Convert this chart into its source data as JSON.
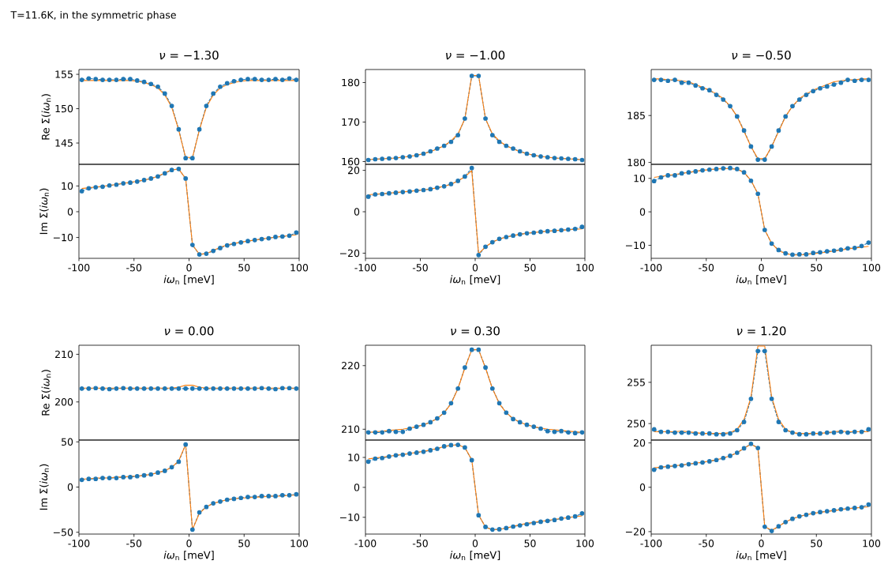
{
  "chart_data": [
    {
      "type": "line",
      "title": "*ν* = −1.30",
      "ylabel": "Re Σ(*iω*$_{n}$)",
      "annotations": [
        "T=11.6K, in the symmetric phase"
      ],
      "tick_labels": "y",
      "xlim": [
        -100,
        100
      ],
      "ylim": [
        141.9,
        155.7
      ],
      "yticks": [
        145,
        150,
        155
      ],
      "x": [
        -97.4,
        -91.1,
        -84.8,
        -78.5,
        -72.3,
        -66.0,
        -59.7,
        -53.4,
        -47.1,
        -40.8,
        -34.6,
        -28.3,
        -22.0,
        -15.7,
        -9.4,
        -3.1,
        3.1,
        9.4,
        15.7,
        22.0,
        28.3,
        34.6,
        40.8,
        47.1,
        53.4,
        59.7,
        66.0,
        72.3,
        78.5,
        84.8,
        91.1,
        97.4
      ],
      "series": [
        {
          "color": "#1f77b4",
          "marker": "circle",
          "line_style": "dashed",
          "values": [
            154.2,
            154.4,
            154.3,
            154.2,
            154.2,
            154.2,
            154.3,
            154.3,
            154.1,
            153.9,
            153.6,
            153.2,
            152.2,
            150.4,
            147.0,
            142.8,
            142.8,
            147.0,
            150.4,
            152.2,
            153.2,
            153.7,
            154.0,
            154.2,
            154.3,
            154.3,
            154.2,
            154.2,
            154.3,
            154.2,
            154.4,
            154.2
          ]
        },
        {
          "color": "#ff7f0e",
          "marker": "none",
          "line_style": "solid",
          "values": [
            154.1,
            154.1,
            154.1,
            154.1,
            154.1,
            154.1,
            154.1,
            154.1,
            154.0,
            153.8,
            153.5,
            153.0,
            152.0,
            150.2,
            146.9,
            142.9,
            142.9,
            146.9,
            150.2,
            152.0,
            153.0,
            153.5,
            153.8,
            154.0,
            154.1,
            154.1,
            154.1,
            154.1,
            154.1,
            154.1,
            154.1,
            154.1
          ]
        }
      ]
    },
    {
      "type": "line",
      "title": "*ν* = −1.00",
      "tick_labels": "y",
      "xlim": [
        -100,
        100
      ],
      "ylim": [
        159.3,
        183.3
      ],
      "yticks": [
        160,
        170,
        180
      ],
      "x": [
        -97.4,
        -91.1,
        -84.8,
        -78.5,
        -72.3,
        -66.0,
        -59.7,
        -53.4,
        -47.1,
        -40.8,
        -34.6,
        -28.3,
        -22.0,
        -15.7,
        -9.4,
        -3.1,
        3.1,
        9.4,
        15.7,
        22.0,
        28.3,
        34.6,
        40.8,
        47.1,
        53.4,
        59.7,
        66.0,
        72.3,
        78.5,
        84.8,
        91.1,
        97.4
      ],
      "series": [
        {
          "color": "#1f77b4",
          "marker": "circle",
          "line_style": "dashed",
          "values": [
            160.4,
            160.6,
            160.7,
            160.8,
            160.9,
            161.1,
            161.3,
            161.6,
            162.0,
            162.6,
            163.3,
            164.0,
            165.0,
            166.7,
            170.9,
            181.7,
            181.7,
            170.9,
            166.7,
            165.0,
            164.0,
            163.3,
            162.6,
            162.0,
            161.6,
            161.3,
            161.1,
            160.9,
            160.8,
            160.7,
            160.6,
            160.4
          ]
        },
        {
          "color": "#ff7f0e",
          "marker": "none",
          "line_style": "solid",
          "values": [
            160.5,
            160.6,
            160.7,
            160.8,
            160.9,
            161.1,
            161.3,
            161.6,
            162.0,
            162.5,
            163.2,
            164.0,
            165.2,
            167.0,
            170.8,
            181.8,
            181.8,
            170.8,
            167.0,
            165.2,
            164.0,
            163.2,
            162.5,
            162.0,
            161.6,
            161.3,
            161.1,
            160.9,
            160.8,
            160.7,
            160.6,
            160.5
          ]
        }
      ]
    },
    {
      "type": "line",
      "title": "*ν* = −0.50",
      "tick_labels": "y",
      "xlim": [
        -100,
        100
      ],
      "ylim": [
        179.8,
        189.9
      ],
      "yticks": [
        180,
        185
      ],
      "x": [
        -97.4,
        -91.1,
        -84.8,
        -78.5,
        -72.3,
        -66.0,
        -59.7,
        -53.4,
        -47.1,
        -40.8,
        -34.6,
        -28.3,
        -22.0,
        -15.7,
        -9.4,
        -3.1,
        3.1,
        9.4,
        15.7,
        22.0,
        28.3,
        34.6,
        40.8,
        47.1,
        53.4,
        59.7,
        66.0,
        72.3,
        78.5,
        84.8,
        91.1,
        97.4
      ],
      "series": [
        {
          "color": "#1f77b4",
          "marker": "circle",
          "line_style": "dashed",
          "values": [
            188.8,
            188.8,
            188.7,
            188.8,
            188.5,
            188.5,
            188.2,
            187.9,
            187.7,
            187.2,
            186.7,
            186.0,
            184.9,
            183.4,
            181.7,
            180.3,
            180.3,
            181.7,
            183.4,
            184.9,
            186.0,
            186.7,
            187.2,
            187.6,
            187.9,
            188.1,
            188.3,
            188.5,
            188.8,
            188.7,
            188.8,
            188.8
          ]
        },
        {
          "color": "#ff7f0e",
          "marker": "none",
          "line_style": "solid",
          "values": [
            188.9,
            188.9,
            188.8,
            188.8,
            188.7,
            188.6,
            188.3,
            188.0,
            187.7,
            187.3,
            186.8,
            186.0,
            184.9,
            183.3,
            181.7,
            180.4,
            180.4,
            181.7,
            183.3,
            184.9,
            186.0,
            186.8,
            187.3,
            187.7,
            188.0,
            188.3,
            188.6,
            188.7,
            188.8,
            188.8,
            188.9,
            188.9
          ]
        }
      ]
    },
    {
      "type": "line",
      "ylabel": "Im Σ(*iω*$_{n}$)",
      "xlabel": "*iω*$_{n}$ [meV]",
      "xlim": [
        -100,
        100
      ],
      "ylim": [
        -18.1,
        18.4
      ],
      "xticks": [
        -100,
        -50,
        0,
        50,
        100
      ],
      "yticks": [
        {
          "value": -10,
          "label": "−10"
        },
        0,
        10
      ],
      "x": [
        -97.4,
        -91.1,
        -84.8,
        -78.5,
        -72.3,
        -66.0,
        -59.7,
        -53.4,
        -47.1,
        -40.8,
        -34.6,
        -28.3,
        -22.0,
        -15.7,
        -9.4,
        -3.1,
        3.1,
        9.4,
        15.7,
        22.0,
        28.3,
        34.6,
        40.8,
        47.1,
        53.4,
        59.7,
        66.0,
        72.3,
        78.5,
        84.8,
        91.1,
        97.4
      ],
      "series": [
        {
          "color": "#1f77b4",
          "marker": "circle",
          "line_style": "dashed",
          "values": [
            8.0,
            9.1,
            9.5,
            9.7,
            10.2,
            10.5,
            11.0,
            11.3,
            11.7,
            12.3,
            12.9,
            13.7,
            14.9,
            16.2,
            16.6,
            12.9,
            -12.9,
            -16.6,
            -16.3,
            -15.2,
            -14.1,
            -13.1,
            -12.5,
            -11.9,
            -11.4,
            -11.0,
            -10.6,
            -10.3,
            -9.8,
            -9.6,
            -9.3,
            -8.1
          ]
        },
        {
          "color": "#ff7f0e",
          "marker": "none",
          "line_style": "solid",
          "values": [
            9.0,
            9.3,
            9.6,
            9.9,
            10.2,
            10.6,
            11.0,
            11.4,
            11.8,
            12.3,
            12.9,
            13.8,
            15.0,
            16.3,
            16.5,
            12.9,
            -12.9,
            -16.5,
            -16.3,
            -15.0,
            -13.8,
            -12.9,
            -12.3,
            -11.8,
            -11.4,
            -11.0,
            -10.6,
            -10.2,
            -9.9,
            -9.6,
            -9.3,
            -9.0
          ]
        }
      ]
    },
    {
      "type": "line",
      "xlabel": "*iω*$_{n}$ [meV]",
      "xlim": [
        -100,
        100
      ],
      "ylim": [
        -22.5,
        22.9
      ],
      "xticks": [
        -100,
        -50,
        0,
        50,
        100
      ],
      "yticks": [
        {
          "value": -20,
          "label": "−20"
        },
        0,
        20
      ],
      "x": [
        -97.4,
        -91.1,
        -84.8,
        -78.5,
        -72.3,
        -66.0,
        -59.7,
        -53.4,
        -47.1,
        -40.8,
        -34.6,
        -28.3,
        -22.0,
        -15.7,
        -9.4,
        -3.1,
        3.1,
        9.4,
        15.7,
        22.0,
        28.3,
        34.6,
        40.8,
        47.1,
        53.4,
        59.7,
        66.0,
        72.3,
        78.5,
        84.8,
        91.1,
        97.4
      ],
      "series": [
        {
          "color": "#1f77b4",
          "marker": "circle",
          "line_style": "dashed",
          "values": [
            7.3,
            8.4,
            8.6,
            8.9,
            9.2,
            9.5,
            9.8,
            10.2,
            10.5,
            10.9,
            11.6,
            12.3,
            13.4,
            14.9,
            17.0,
            21.1,
            -20.9,
            -16.9,
            -14.7,
            -13.1,
            -12.2,
            -11.5,
            -10.9,
            -10.4,
            -10.1,
            -9.7,
            -9.4,
            -9.2,
            -8.9,
            -8.6,
            -8.3,
            -7.3
          ]
        },
        {
          "color": "#ff7f0e",
          "marker": "none",
          "line_style": "solid",
          "values": [
            8.2,
            8.5,
            8.7,
            9.0,
            9.3,
            9.6,
            9.9,
            10.2,
            10.6,
            11.0,
            11.6,
            12.3,
            13.3,
            14.9,
            16.9,
            19.9,
            -20.3,
            -16.9,
            -14.7,
            -13.2,
            -12.2,
            -11.5,
            -10.9,
            -10.4,
            -10.0,
            -9.7,
            -9.4,
            -9.1,
            -8.9,
            -8.7,
            -8.5,
            -8.3
          ]
        }
      ]
    },
    {
      "type": "line",
      "xlabel": "*iω*$_{n}$ [meV]",
      "xlim": [
        -100,
        100
      ],
      "ylim": [
        -13.9,
        14.2
      ],
      "xticks": [
        -100,
        -50,
        0,
        50,
        100
      ],
      "yticks": [
        {
          "value": -10,
          "label": "−10"
        },
        0,
        10
      ],
      "x": [
        -97.4,
        -91.1,
        -84.8,
        -78.5,
        -72.3,
        -66.0,
        -59.7,
        -53.4,
        -47.1,
        -40.8,
        -34.6,
        -28.3,
        -22.0,
        -15.7,
        -9.4,
        -3.1,
        3.1,
        9.4,
        15.7,
        22.0,
        28.3,
        34.6,
        40.8,
        47.1,
        53.4,
        59.7,
        66.0,
        72.3,
        78.5,
        84.8,
        91.1,
        97.4
      ],
      "series": [
        {
          "color": "#1f77b4",
          "marker": "circle",
          "line_style": "dashed",
          "values": [
            9.2,
            10.3,
            10.9,
            10.9,
            11.5,
            11.8,
            12.1,
            12.4,
            12.6,
            12.8,
            13.0,
            13.1,
            12.8,
            11.8,
            9.3,
            5.4,
            -5.4,
            -9.5,
            -11.4,
            -12.4,
            -12.8,
            -12.7,
            -12.7,
            -12.3,
            -12.1,
            -11.8,
            -11.6,
            -11.3,
            -10.9,
            -10.8,
            -10.2,
            -9.2
          ]
        },
        {
          "color": "#ff7f0e",
          "marker": "none",
          "line_style": "solid",
          "values": [
            10.3,
            10.6,
            10.9,
            11.2,
            11.5,
            11.8,
            12.1,
            12.4,
            12.6,
            12.8,
            12.9,
            12.9,
            12.7,
            11.8,
            9.4,
            5.4,
            -5.4,
            -9.4,
            -11.6,
            -12.5,
            -12.9,
            -12.9,
            -12.7,
            -12.5,
            -12.3,
            -12.0,
            -11.7,
            -11.4,
            -11.1,
            -10.8,
            -10.6,
            -10.3
          ]
        }
      ]
    },
    {
      "type": "line",
      "title": "*ν* = 0.00",
      "ylabel": "Re Σ(*iω*$_{n}$)",
      "tick_labels": "y",
      "xlim": [
        -100,
        100
      ],
      "ylim": [
        192.0,
        211.9
      ],
      "yticks": [
        200,
        210
      ],
      "x": [
        -97.4,
        -91.1,
        -84.8,
        -78.5,
        -72.3,
        -66.0,
        -59.7,
        -53.4,
        -47.1,
        -40.8,
        -34.6,
        -28.3,
        -22.0,
        -15.7,
        -9.4,
        -3.1,
        3.1,
        9.4,
        15.7,
        22.0,
        28.3,
        34.6,
        40.8,
        47.1,
        53.4,
        59.7,
        66.0,
        72.3,
        78.5,
        84.8,
        91.1,
        97.4
      ],
      "series": [
        {
          "color": "#1f77b4",
          "marker": "circle",
          "line_style": "dashed",
          "values": [
            202.8,
            202.8,
            202.9,
            202.8,
            202.7,
            202.8,
            202.9,
            202.8,
            202.8,
            202.8,
            202.8,
            202.8,
            202.8,
            202.8,
            202.8,
            202.8,
            202.8,
            202.8,
            202.8,
            202.8,
            202.8,
            202.8,
            202.8,
            202.8,
            202.8,
            202.8,
            202.9,
            202.8,
            202.7,
            202.9,
            202.9,
            202.8
          ]
        },
        {
          "color": "#ff7f0e",
          "marker": "none",
          "line_style": "solid",
          "values": [
            202.9,
            202.9,
            202.9,
            202.9,
            202.9,
            202.9,
            202.9,
            202.9,
            202.9,
            202.9,
            202.9,
            202.9,
            202.9,
            202.9,
            203.1,
            203.5,
            203.5,
            203.1,
            202.9,
            202.9,
            202.9,
            202.9,
            202.9,
            202.9,
            202.9,
            202.9,
            202.9,
            202.9,
            202.9,
            202.9,
            202.9,
            202.9
          ]
        }
      ]
    },
    {
      "type": "line",
      "title": "*ν* = 0.30",
      "tick_labels": "y",
      "xlim": [
        -100,
        100
      ],
      "ylim": [
        208.3,
        223.2
      ],
      "yticks": [
        210,
        220
      ],
      "x": [
        -97.4,
        -91.1,
        -84.8,
        -78.5,
        -72.3,
        -66.0,
        -59.7,
        -53.4,
        -47.1,
        -40.8,
        -34.6,
        -28.3,
        -22.0,
        -15.7,
        -9.4,
        -3.1,
        3.1,
        9.4,
        15.7,
        22.0,
        28.3,
        34.6,
        40.8,
        47.1,
        53.4,
        59.7,
        66.0,
        72.3,
        78.5,
        84.8,
        91.1,
        97.4
      ],
      "series": [
        {
          "color": "#1f77b4",
          "marker": "circle",
          "line_style": "dashed",
          "values": [
            209.5,
            209.5,
            209.5,
            209.7,
            209.6,
            209.6,
            210.1,
            210.4,
            210.7,
            211.1,
            211.7,
            212.6,
            214.1,
            216.4,
            219.7,
            222.5,
            222.5,
            219.7,
            216.4,
            214.1,
            212.6,
            211.6,
            211.1,
            210.7,
            210.4,
            210.1,
            209.7,
            209.6,
            209.7,
            209.5,
            209.4,
            209.5
          ]
        },
        {
          "color": "#ff7f0e",
          "marker": "none",
          "line_style": "solid",
          "values": [
            209.5,
            209.6,
            209.7,
            209.8,
            209.9,
            210.0,
            210.2,
            210.4,
            210.7,
            211.1,
            211.7,
            212.6,
            214.0,
            216.4,
            219.6,
            222.5,
            222.5,
            219.6,
            216.4,
            214.0,
            212.6,
            211.7,
            211.1,
            210.7,
            210.4,
            210.2,
            210.0,
            209.9,
            209.8,
            209.7,
            209.6,
            209.5
          ]
        }
      ]
    },
    {
      "type": "line",
      "title": "*ν* = 1.20",
      "tick_labels": "y",
      "xlim": [
        -100,
        100
      ],
      "ylim": [
        248.0,
        259.5
      ],
      "yticks": [
        250,
        255
      ],
      "x": [
        -97.4,
        -91.1,
        -84.8,
        -78.5,
        -72.3,
        -66.0,
        -59.7,
        -53.4,
        -47.1,
        -40.8,
        -34.6,
        -28.3,
        -22.0,
        -15.7,
        -9.4,
        -3.1,
        3.1,
        9.4,
        15.7,
        22.0,
        28.3,
        34.6,
        40.8,
        47.1,
        53.4,
        59.7,
        66.0,
        72.3,
        78.5,
        84.8,
        91.1,
        97.4
      ],
      "series": [
        {
          "color": "#1f77b4",
          "marker": "circle",
          "line_style": "dashed",
          "values": [
            249.3,
            249.0,
            249.0,
            248.9,
            248.9,
            248.9,
            248.8,
            248.8,
            248.8,
            248.7,
            248.7,
            248.8,
            249.2,
            250.2,
            253.0,
            258.8,
            258.8,
            253.0,
            250.2,
            249.2,
            248.9,
            248.7,
            248.7,
            248.8,
            248.8,
            248.9,
            248.9,
            249.0,
            248.9,
            249.0,
            249.0,
            249.3
          ]
        },
        {
          "color": "#ff7f0e",
          "marker": "none",
          "line_style": "solid",
          "values": [
            249.0,
            249.0,
            249.0,
            249.0,
            249.1,
            249.0,
            248.9,
            248.8,
            248.8,
            248.8,
            248.8,
            248.9,
            249.3,
            250.5,
            253.2,
            259.4,
            259.4,
            253.2,
            250.5,
            249.3,
            248.9,
            248.8,
            248.8,
            248.8,
            248.8,
            248.9,
            249.0,
            249.1,
            249.0,
            249.0,
            249.0,
            249.0
          ]
        }
      ]
    },
    {
      "type": "line",
      "ylabel": "Im Σ(*iω*$_{n}$)",
      "xlabel": "*iω*$_{n}$ [meV]",
      "xlim": [
        -100,
        100
      ],
      "ylim": [
        -52,
        52
      ],
      "xticks": [
        -100,
        -50,
        0,
        50,
        100
      ],
      "yticks": [
        {
          "value": -50,
          "label": "−50"
        },
        0,
        50
      ],
      "x": [
        -97.4,
        -91.1,
        -84.8,
        -78.5,
        -72.3,
        -66.0,
        -59.7,
        -53.4,
        -47.1,
        -40.8,
        -34.6,
        -28.3,
        -22.0,
        -15.7,
        -9.4,
        -3.1,
        3.1,
        9.4,
        15.7,
        22.0,
        28.3,
        34.6,
        40.8,
        47.1,
        53.4,
        59.7,
        66.0,
        72.3,
        78.5,
        84.8,
        91.1,
        97.4
      ],
      "series": [
        {
          "color": "#1f77b4",
          "marker": "circle",
          "line_style": "dashed",
          "values": [
            8,
            9,
            9,
            10,
            10,
            10,
            11,
            11,
            12,
            13,
            14,
            16,
            18,
            22,
            28,
            47,
            -47,
            -28,
            -22,
            -18,
            -16,
            -14,
            -13,
            -12,
            -11,
            -11,
            -10,
            -10,
            -10,
            -9,
            -9,
            -8
          ]
        },
        {
          "color": "#ff7f0e",
          "marker": "none",
          "line_style": "solid",
          "values": [
            9,
            9,
            10,
            10,
            10,
            11,
            11,
            12,
            12,
            13,
            14,
            16,
            18,
            22,
            29,
            47,
            -47,
            -29,
            -22,
            -18,
            -16,
            -14,
            -13,
            -12,
            -12,
            -11,
            -11,
            -10,
            -10,
            -10,
            -9,
            -9
          ]
        }
      ]
    },
    {
      "type": "line",
      "xlabel": "*iω*$_{n}$ [meV]",
      "xlim": [
        -100,
        100
      ],
      "ylim": [
        -15.6,
        15.8
      ],
      "xticks": [
        -100,
        -50,
        0,
        50,
        100
      ],
      "yticks": [
        {
          "value": -10,
          "label": "−10"
        },
        0,
        10
      ],
      "x": [
        -97.4,
        -91.1,
        -84.8,
        -78.5,
        -72.3,
        -66.0,
        -59.7,
        -53.4,
        -47.1,
        -40.8,
        -34.6,
        -28.3,
        -22.0,
        -15.7,
        -9.4,
        -3.1,
        3.1,
        9.4,
        15.7,
        22.0,
        28.3,
        34.6,
        40.8,
        47.1,
        53.4,
        59.7,
        66.0,
        72.3,
        78.5,
        84.8,
        91.1,
        97.4
      ],
      "series": [
        {
          "color": "#1f77b4",
          "marker": "circle",
          "line_style": "dashed",
          "values": [
            8.6,
            9.6,
            9.8,
            10.3,
            10.7,
            10.9,
            11.3,
            11.6,
            11.9,
            12.4,
            12.9,
            13.7,
            14.1,
            14.2,
            13.3,
            9.1,
            -9.3,
            -13.2,
            -14.1,
            -14.0,
            -13.6,
            -13.1,
            -12.7,
            -12.3,
            -11.9,
            -11.5,
            -11.2,
            -10.9,
            -10.4,
            -10.1,
            -9.7,
            -8.7
          ]
        },
        {
          "color": "#ff7f0e",
          "marker": "none",
          "line_style": "solid",
          "values": [
            9.5,
            9.8,
            10.1,
            10.4,
            10.7,
            11.0,
            11.3,
            11.7,
            12.0,
            12.5,
            13.0,
            13.6,
            14.0,
            14.2,
            13.3,
            9.2,
            -9.2,
            -13.3,
            -14.2,
            -14.0,
            -13.6,
            -13.0,
            -12.5,
            -12.0,
            -11.7,
            -11.3,
            -11.0,
            -10.7,
            -10.4,
            -10.1,
            -9.8,
            -9.5
          ]
        }
      ]
    },
    {
      "type": "line",
      "xlabel": "*iω*$_{n}$ [meV]",
      "xlim": [
        -100,
        100
      ],
      "ylim": [
        -21.1,
        21.3
      ],
      "xticks": [
        -100,
        -50,
        0,
        50,
        100
      ],
      "yticks": [
        {
          "value": -20,
          "label": "−20"
        },
        0,
        20
      ],
      "x": [
        -97.4,
        -91.1,
        -84.8,
        -78.5,
        -72.3,
        -66.0,
        -59.7,
        -53.4,
        -47.1,
        -40.8,
        -34.6,
        -28.3,
        -22.0,
        -15.7,
        -9.4,
        -3.1,
        3.1,
        9.4,
        15.7,
        22.0,
        28.3,
        34.6,
        40.8,
        47.1,
        53.4,
        59.7,
        66.0,
        72.3,
        78.5,
        84.8,
        91.1,
        97.4
      ],
      "series": [
        {
          "color": "#1f77b4",
          "marker": "circle",
          "line_style": "dashed",
          "values": [
            7.9,
            9.0,
            9.3,
            9.6,
            9.9,
            10.4,
            10.8,
            11.2,
            11.7,
            12.3,
            13.2,
            14.2,
            15.6,
            17.6,
            19.6,
            17.7,
            -17.8,
            -19.7,
            -17.6,
            -15.7,
            -14.2,
            -13.1,
            -12.4,
            -11.7,
            -11.2,
            -10.8,
            -10.4,
            -9.9,
            -9.6,
            -9.3,
            -9.0,
            -7.8
          ]
        },
        {
          "color": "#ff7f0e",
          "marker": "none",
          "line_style": "solid",
          "values": [
            8.8,
            9.1,
            9.4,
            9.7,
            10.1,
            10.5,
            10.9,
            11.3,
            11.8,
            12.4,
            13.2,
            14.2,
            15.6,
            17.6,
            19.4,
            17.7,
            -17.7,
            -19.4,
            -17.6,
            -15.6,
            -14.2,
            -13.2,
            -12.4,
            -11.8,
            -11.3,
            -10.9,
            -10.5,
            -10.1,
            -9.7,
            -9.4,
            -9.1,
            -8.8
          ]
        }
      ]
    }
  ]
}
